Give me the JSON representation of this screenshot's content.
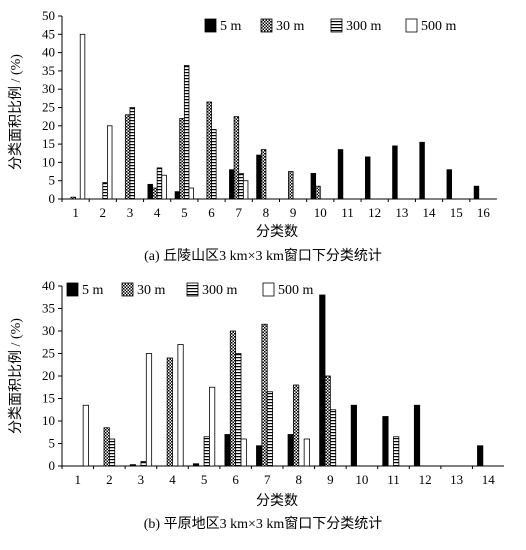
{
  "chart_data": [
    {
      "type": "bar",
      "caption": "(a) 丘陵山区3 km×3 km窗口下分类统计",
      "xlabel": "分类数",
      "ylabel": "分类面积比例 / (%)",
      "ylim": [
        0,
        50
      ],
      "yticks": [
        0,
        5,
        10,
        15,
        20,
        25,
        30,
        35,
        40,
        45,
        50
      ],
      "categories": [
        "1",
        "2",
        "3",
        "4",
        "5",
        "6",
        "7",
        "8",
        "9",
        "10",
        "11",
        "12",
        "13",
        "14",
        "15",
        "16"
      ],
      "legend_position": "top-right",
      "series": [
        {
          "name": "5 m",
          "color": "#000000",
          "pattern": "solid",
          "values": [
            0,
            0,
            0,
            4,
            2,
            0,
            8,
            12,
            0,
            7,
            13.5,
            11.5,
            14.5,
            15.5,
            8,
            3.5
          ]
        },
        {
          "name": "30 m",
          "color": "#000000",
          "pattern": "checker",
          "values": [
            0.5,
            0,
            23,
            3,
            22,
            26.5,
            22.5,
            13.5,
            7.5,
            3.5,
            0,
            0,
            0,
            0,
            0,
            0
          ]
        },
        {
          "name": "300 m",
          "color": "#000000",
          "pattern": "hstripe",
          "values": [
            0,
            4.5,
            25,
            8.5,
            36.5,
            19,
            7,
            0,
            0,
            0,
            0,
            0,
            0,
            0,
            0,
            0
          ]
        },
        {
          "name": "500 m",
          "color": "#000000",
          "pattern": "vstripe",
          "values": [
            45,
            20,
            0,
            6.5,
            3,
            0,
            5,
            0,
            0,
            0,
            0,
            0,
            0,
            0,
            0,
            0
          ]
        }
      ]
    },
    {
      "type": "bar",
      "caption": "(b) 平原地区3 km×3 km窗口下分类统计",
      "xlabel": "分类数",
      "ylabel": "分类面积比例 / (%)",
      "ylim": [
        0,
        40
      ],
      "yticks": [
        0,
        5,
        10,
        15,
        20,
        25,
        30,
        35,
        40
      ],
      "categories": [
        "1",
        "2",
        "3",
        "4",
        "5",
        "6",
        "7",
        "8",
        "9",
        "10",
        "11",
        "12",
        "13",
        "14"
      ],
      "legend_position": "top-left",
      "series": [
        {
          "name": "5 m",
          "color": "#000000",
          "pattern": "solid",
          "values": [
            0,
            0,
            0.3,
            0,
            0.5,
            7,
            4.5,
            7,
            38,
            13.5,
            11,
            13.5,
            0,
            4.5
          ]
        },
        {
          "name": "30 m",
          "color": "#000000",
          "pattern": "checker",
          "values": [
            0,
            8.5,
            0,
            24,
            0,
            30,
            31.5,
            18,
            20,
            0,
            0,
            0,
            0,
            0
          ]
        },
        {
          "name": "300 m",
          "color": "#000000",
          "pattern": "hstripe",
          "values": [
            0,
            6,
            1,
            0,
            6.5,
            25,
            16.5,
            0,
            12.5,
            0,
            6.5,
            0,
            0,
            0
          ]
        },
        {
          "name": "500 m",
          "color": "#000000",
          "pattern": "vstripe",
          "values": [
            13.5,
            0,
            25,
            27,
            17.5,
            6,
            0,
            6,
            0,
            0,
            0,
            0,
            0,
            0
          ]
        }
      ]
    }
  ]
}
